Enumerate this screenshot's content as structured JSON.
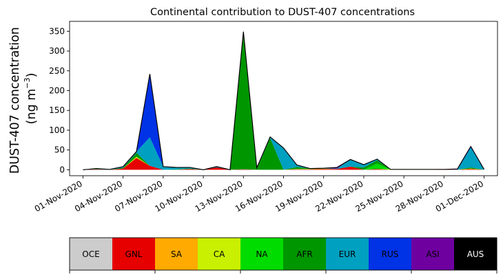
{
  "chart_data": {
    "type": "area",
    "stacked": true,
    "title": "Continental contribution to DUST-407 concentrations",
    "ylabel_line1": "DUST-407 concentration",
    "ylabel_line2_prefix": "(ng m",
    "ylabel_line2_sup": "−3",
    "ylabel_line2_suffix": ")",
    "xlabel": "",
    "x_start": "2020-11-01",
    "x_step_days": 1,
    "x_tick_labels": [
      "01-Nov-2020",
      "04-Nov-2020",
      "07-Nov-2020",
      "10-Nov-2020",
      "13-Nov-2020",
      "16-Nov-2020",
      "19-Nov-2020",
      "22-Nov-2020",
      "25-Nov-2020",
      "28-Nov-2020",
      "01-Dec-2020"
    ],
    "xlim": [
      "2020-10-31",
      "2020-12-02"
    ],
    "ylim": [
      -15,
      375
    ],
    "y_ticks": [
      0,
      50,
      100,
      150,
      200,
      250,
      300,
      350
    ],
    "grid": false,
    "series": [
      {
        "name": "OCE",
        "color": "#cccccc",
        "values": [
          0,
          0,
          0,
          0,
          0,
          0,
          0,
          0,
          0,
          0,
          0,
          0,
          0,
          0,
          0,
          0,
          0,
          0,
          0,
          0,
          0,
          0,
          0,
          0,
          0,
          0,
          0,
          0,
          0,
          0,
          0
        ]
      },
      {
        "name": "GNL",
        "color": "#e60000",
        "values": [
          0,
          1,
          0,
          3,
          30,
          10,
          0,
          0,
          2,
          0,
          6,
          0,
          1,
          0,
          0,
          0,
          1,
          1,
          2,
          2,
          8,
          0,
          2,
          0,
          0,
          0,
          0,
          1,
          0,
          2,
          0
        ]
      },
      {
        "name": "SA",
        "color": "#ffaa00",
        "values": [
          0,
          0,
          0,
          0,
          0,
          0,
          0,
          0,
          0,
          0,
          0,
          0,
          0,
          0,
          0,
          0,
          0,
          0,
          0,
          0,
          0,
          0,
          0,
          0,
          0,
          0,
          0,
          0,
          0,
          0,
          0
        ]
      },
      {
        "name": "CA",
        "color": "#c8f000",
        "values": [
          0,
          0,
          0,
          0,
          3,
          0,
          0,
          0,
          0,
          0,
          0,
          0,
          0,
          0,
          0,
          0,
          1,
          1,
          1,
          0,
          0,
          0,
          0,
          1,
          1,
          1,
          1,
          0,
          0,
          1,
          0
        ]
      },
      {
        "name": "NA",
        "color": "#00dc00",
        "values": [
          0,
          0,
          0,
          0,
          0,
          0,
          0,
          0,
          0,
          0,
          0,
          0,
          0,
          0,
          0,
          0,
          0,
          0,
          0,
          0,
          0,
          0,
          14,
          0,
          0,
          0,
          0,
          0,
          0,
          0,
          0
        ]
      },
      {
        "name": "AFR",
        "color": "#009600",
        "values": [
          0,
          1,
          0,
          2,
          10,
          0,
          0,
          1,
          1,
          0,
          0,
          0,
          348,
          2,
          80,
          0,
          5,
          1,
          0,
          0,
          0,
          6,
          8,
          0,
          0,
          0,
          0,
          0,
          0,
          3,
          0
        ]
      },
      {
        "name": "EUR",
        "color": "#00a0c0",
        "values": [
          0,
          1,
          1,
          3,
          3,
          72,
          8,
          5,
          3,
          0,
          2,
          0,
          0,
          0,
          3,
          55,
          5,
          0,
          1,
          1,
          18,
          7,
          3,
          0,
          0,
          0,
          0,
          0,
          0,
          50,
          1
        ]
      },
      {
        "name": "RUS",
        "color": "#0032e6",
        "values": [
          0,
          0,
          0,
          0,
          0,
          160,
          0,
          0,
          0,
          0,
          0,
          0,
          0,
          0,
          0,
          0,
          0,
          0,
          0,
          0,
          0,
          0,
          0,
          0,
          0,
          0,
          0,
          0,
          0,
          3,
          0
        ]
      },
      {
        "name": "ASI",
        "color": "#6e00a0",
        "values": [
          0,
          0,
          0,
          0,
          0,
          0,
          0,
          0,
          0,
          0,
          0,
          0,
          0,
          3,
          0,
          0,
          0,
          0,
          0,
          3,
          0,
          0,
          0,
          0,
          0,
          0,
          0,
          0,
          2,
          0,
          0
        ]
      },
      {
        "name": "AUS",
        "color": "#000000",
        "values": [
          0,
          0,
          0,
          0,
          0,
          0,
          0,
          0,
          0,
          0,
          0,
          0,
          0,
          0,
          0,
          0,
          0,
          0,
          0,
          0,
          0,
          0,
          0,
          0,
          0,
          0,
          0,
          0,
          0,
          0,
          0
        ]
      }
    ],
    "legend": {
      "placement": "bottom",
      "items": [
        {
          "label": "OCE",
          "color": "#cccccc",
          "text_color": "#000000"
        },
        {
          "label": "GNL",
          "color": "#e60000",
          "text_color": "#000000"
        },
        {
          "label": "SA",
          "color": "#ffaa00",
          "text_color": "#000000"
        },
        {
          "label": "CA",
          "color": "#c8f000",
          "text_color": "#000000"
        },
        {
          "label": "NA",
          "color": "#00dc00",
          "text_color": "#000000"
        },
        {
          "label": "AFR",
          "color": "#009600",
          "text_color": "#000000"
        },
        {
          "label": "EUR",
          "color": "#00a0c0",
          "text_color": "#000000"
        },
        {
          "label": "RUS",
          "color": "#0032e6",
          "text_color": "#000000"
        },
        {
          "label": "ASI",
          "color": "#6e00a0",
          "text_color": "#000000"
        },
        {
          "label": "AUS",
          "color": "#000000",
          "text_color": "#ffffff"
        }
      ]
    }
  }
}
